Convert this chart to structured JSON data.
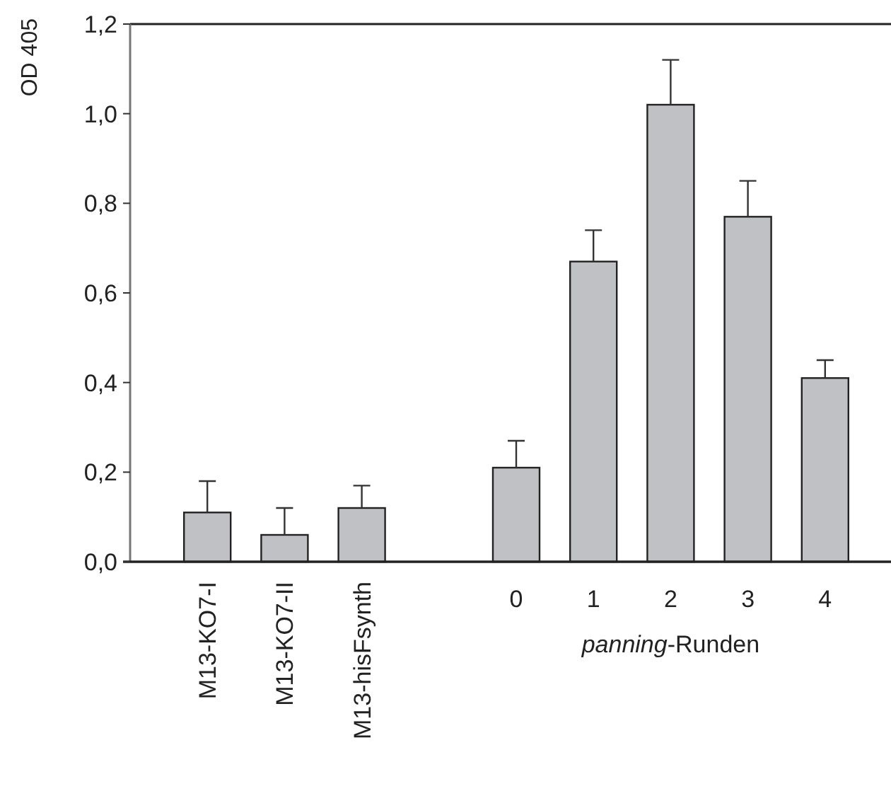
{
  "chart_data": {
    "type": "bar",
    "ylabel": "OD 405",
    "xlabel": "panning-Runden",
    "categories": [
      "M13-KO7-I",
      "M13-KO7-II",
      "M13-hisFsynth",
      null,
      "0",
      "1",
      "2",
      "3",
      "4"
    ],
    "values": [
      0.11,
      0.06,
      0.12,
      null,
      0.21,
      0.67,
      1.02,
      0.77,
      0.41
    ],
    "errors": [
      [
        0.11,
        0.18
      ],
      [
        0.06,
        0.12
      ],
      [
        0.12,
        0.17
      ],
      null,
      [
        0.21,
        0.27
      ],
      [
        0.67,
        0.74
      ],
      [
        1.02,
        1.12
      ],
      [
        0.77,
        0.85
      ],
      [
        0.41,
        0.45
      ]
    ],
    "color": "#c0c1c4",
    "ylim": [
      0,
      1.2
    ],
    "yticks": [
      {
        "value": 0,
        "label": "0,0"
      },
      {
        "value": 0.2,
        "label": "0,2"
      },
      {
        "value": 0.4,
        "label": "0,4"
      },
      {
        "value": 0.6,
        "label": "0,6"
      },
      {
        "value": 0.8,
        "label": "0,8"
      },
      {
        "value": 1,
        "label": "1,0"
      },
      {
        "value": 1.2,
        "label": "1,2"
      }
    ],
    "grid": false
  }
}
